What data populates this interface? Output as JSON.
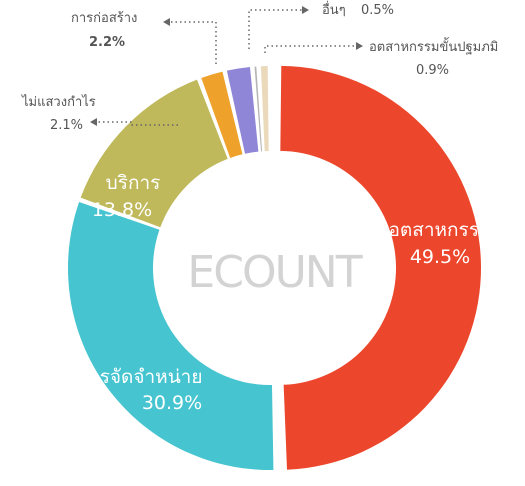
{
  "logo_text": "ECOUNT",
  "chart_data": {
    "type": "pie",
    "variant": "donut",
    "title": "",
    "categories": [
      "อุตสาหกรรม",
      "การจัดจำหน่าย",
      "บริการ",
      "ไม่แสวงกำไร",
      "การก่อสร้าง",
      "อื่นๆ",
      "อุตสาหกรรมขั้นปฐมภูมิ"
    ],
    "labels": [
      "อตสาหกรรม",
      "การจัดจำหน่าย",
      "บริการ",
      "ไม่แสวงกำไร",
      "การก่อสร้าง",
      "อื่นๆ",
      "อตสาหกรรมขั้นปฐมภมิ"
    ],
    "values": [
      49.5,
      30.9,
      13.8,
      2.1,
      2.2,
      0.5,
      0.9
    ],
    "value_labels": [
      "49.5%",
      "30.9%",
      "13.8%",
      "2.1%",
      "2.2%",
      "0.5%",
      "0.9%"
    ],
    "colors": [
      "#ec472c",
      "#46c4d0",
      "#bfb95b",
      "#eea22c",
      "#8f86d7",
      "#b5b5b5",
      "#ead9bb"
    ],
    "start_angle_deg": 0,
    "direction": "clockwise",
    "exploded_slice": "อุตสาหกรรม",
    "legend": "none"
  }
}
